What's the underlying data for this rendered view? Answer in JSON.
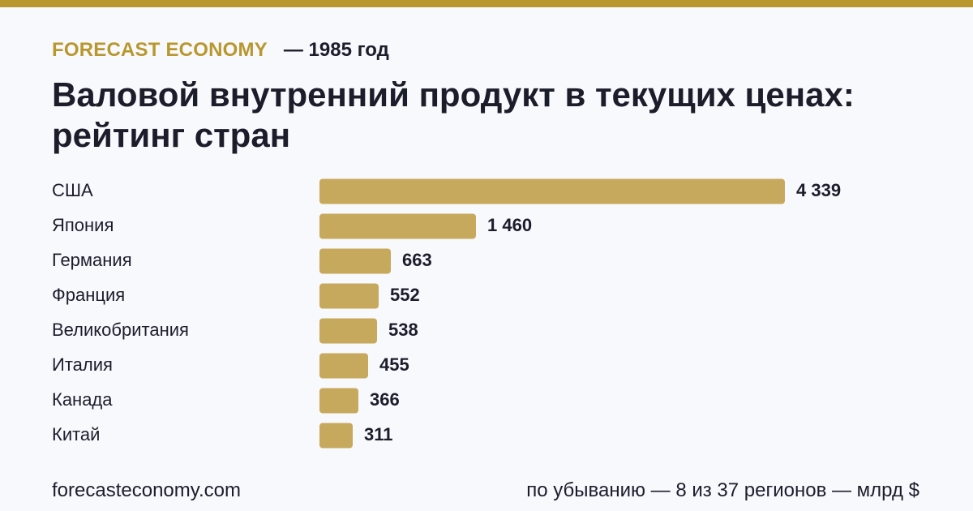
{
  "header": {
    "brand": "FORECAST ECONOMY",
    "year_label": "— 1985 год",
    "title": "Валовой внутренний продукт в текущих ценах: рейтинг стран"
  },
  "footer": {
    "site": "forecasteconomy.com",
    "note": "по убыванию — 8 из 37 регионов — млрд $"
  },
  "colors": {
    "accent": "#b8972e",
    "bar": "#c6a95c",
    "text": "#1c1d2b",
    "background": "#f8f9fc"
  },
  "chart_data": {
    "type": "bar",
    "orientation": "horizontal",
    "categories": [
      "США",
      "Япония",
      "Германия",
      "Франция",
      "Великобритания",
      "Италия",
      "Канада",
      "Китай"
    ],
    "values": [
      4339,
      1460,
      663,
      552,
      538,
      455,
      366,
      311
    ],
    "value_labels": [
      "4 339",
      "1 460",
      "663",
      "552",
      "538",
      "455",
      "366",
      "311"
    ],
    "title": "Валовой внутренний продукт в текущих ценах: рейтинг стран",
    "xlabel": "",
    "ylabel": "",
    "xlim": [
      0,
      4339
    ],
    "grid": false,
    "legend": "none",
    "unit": "млрд $"
  }
}
